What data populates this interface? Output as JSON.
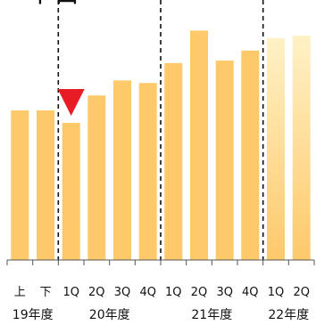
{
  "title_fragment": "中目",
  "chart_data": {
    "type": "bar",
    "categories": [
      "上",
      "下",
      "1Q",
      "2Q",
      "3Q",
      "4Q",
      "1Q",
      "2Q",
      "3Q",
      "4Q",
      "1Q",
      "2Q"
    ],
    "groups": [
      {
        "label": "19年度",
        "categories": [
          "上",
          "下"
        ]
      },
      {
        "label": "20年度",
        "categories": [
          "1Q",
          "2Q",
          "3Q",
          "4Q"
        ]
      },
      {
        "label": "21年度",
        "categories": [
          "1Q",
          "2Q",
          "3Q",
          "4Q"
        ]
      },
      {
        "label": "22年度",
        "categories": [
          "1Q",
          "2Q"
        ]
      }
    ],
    "values": [
      60,
      60,
      55,
      66,
      72,
      71,
      79,
      92,
      80,
      84,
      89,
      90
    ],
    "ylim": [
      0,
      100
    ],
    "forecast_from_index": 10,
    "marker": {
      "category_index": 2,
      "shape": "triangle-down",
      "color": "#e81c24"
    },
    "bar_color": "#fdc96a",
    "forecast_color_top": "#fff1c6",
    "forecast_color_bottom": "#fdc96a",
    "group_separator_style": "dashed",
    "grid": false,
    "legend": "none"
  }
}
